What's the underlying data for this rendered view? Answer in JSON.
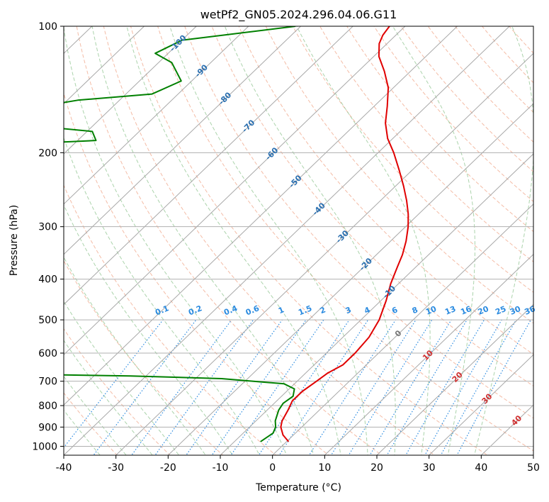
{
  "chart_data": {
    "type": "line",
    "diagram": "skew-T log-P",
    "title": "wetPf2_GN05.2024.296.04.06.G11",
    "xlabel": "Temperature (°C)",
    "ylabel": "Pressure (hPa)",
    "xlim": [
      -40,
      50
    ],
    "ylim": [
      1050,
      100
    ],
    "y_scale": "log",
    "grid": true,
    "x_ticks": [
      -40,
      -30,
      -20,
      -10,
      0,
      10,
      20,
      30,
      40,
      50
    ],
    "y_ticks": [
      100,
      200,
      300,
      400,
      500,
      600,
      700,
      800,
      900,
      1000
    ],
    "series": [
      {
        "role": "temperature",
        "color": "#e00000",
        "points": [
          [
            0.4,
            975
          ],
          [
            -2.0,
            940
          ],
          [
            -4.0,
            900
          ],
          [
            -5.0,
            870
          ],
          [
            -6.0,
            820
          ],
          [
            -7.0,
            780
          ],
          [
            -7.0,
            740
          ],
          [
            -6.3,
            700
          ],
          [
            -5.8,
            670
          ],
          [
            -4.5,
            640
          ],
          [
            -4.5,
            600
          ],
          [
            -5.0,
            550
          ],
          [
            -6.5,
            500
          ],
          [
            -9.0,
            450
          ],
          [
            -11.5,
            410
          ],
          [
            -13.5,
            375
          ],
          [
            -15.0,
            350
          ],
          [
            -17.0,
            325
          ],
          [
            -19.5,
            300
          ],
          [
            -22.0,
            280
          ],
          [
            -25.0,
            260
          ],
          [
            -28.5,
            240
          ],
          [
            -32.5,
            220
          ],
          [
            -37.0,
            200
          ],
          [
            -41.0,
            185
          ],
          [
            -44.5,
            170
          ],
          [
            -47.5,
            155
          ],
          [
            -51.0,
            140
          ],
          [
            -55.0,
            128
          ],
          [
            -59.0,
            118
          ],
          [
            -61.5,
            110
          ],
          [
            -62.5,
            105
          ],
          [
            -63.0,
            100
          ]
        ]
      },
      {
        "role": "dewpoint",
        "color": "#008000",
        "points": [
          [
            -5.0,
            975
          ],
          [
            -4.3,
            930
          ],
          [
            -5.0,
            900
          ],
          [
            -6.3,
            870
          ],
          [
            -7.8,
            820
          ],
          [
            -8.3,
            790
          ],
          [
            -7.8,
            760
          ],
          [
            -9.0,
            730
          ],
          [
            -12.0,
            710
          ],
          [
            -25.0,
            690
          ],
          [
            -43.0,
            680
          ],
          [
            -60.0,
            675
          ],
          [
            -90.0,
            365
          ],
          [
            -80.0,
            357
          ],
          [
            -130.0,
            258
          ],
          [
            -105.0,
            252
          ],
          [
            -94.0,
            238
          ],
          [
            -105.0,
            225
          ],
          [
            -117.0,
            222
          ],
          [
            -115.0,
            192
          ],
          [
            -96.5,
            187
          ],
          [
            -99.0,
            178
          ],
          [
            -122.0,
            168
          ],
          [
            -117.0,
            158
          ],
          [
            -108.0,
            150
          ],
          [
            -95.0,
            145
          ],
          [
            -92.0,
            135
          ],
          [
            -97.5,
            122
          ],
          [
            -102.5,
            116
          ],
          [
            -100.0,
            108
          ],
          [
            -81.0,
            100
          ]
        ]
      }
    ],
    "isotherm_labels": [
      "-100",
      "-90",
      "-80",
      "-70",
      "-60",
      "-50",
      "-40",
      "-30",
      "-20",
      "-10",
      "0",
      "10",
      "20",
      "30",
      "40"
    ],
    "mixing_ratio_labels": [
      "0.1",
      "0.2",
      "0.4",
      "0.6",
      "1",
      "1.5",
      "2",
      "3",
      "4",
      "6",
      "8",
      "10",
      "13",
      "16",
      "20",
      "25",
      "30",
      "36"
    ],
    "colors": {
      "isotherm_label": "#2a6fb0",
      "isotherm_label_warm": "#d03030",
      "isotherm_label_zero": "#777777",
      "dry_adiabat": "#f0a080",
      "moist_adiabat": "#88c088",
      "mixing_ratio": "#2b8be0"
    }
  }
}
